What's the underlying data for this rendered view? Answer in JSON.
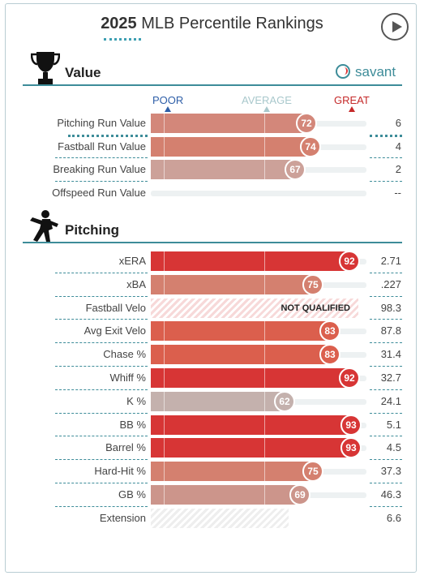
{
  "header": {
    "year": "2025",
    "title": "MLB Percentile Rankings"
  },
  "colors": {
    "accent": "#3d8c99",
    "poor": "#2f5fa8",
    "average": "#a9c8cc",
    "great": "#c52a2a"
  },
  "icons": {
    "play": "play-icon",
    "value": "trophy-icon",
    "pitching": "pitcher-icon",
    "savant": "baseball-icon"
  },
  "value_section": {
    "title": "Value",
    "brand": "savant",
    "scale": {
      "poor": "POOR",
      "average": "AVERAGE",
      "great": "GREAT"
    },
    "rows": [
      {
        "name": "Pitching Run Value",
        "percentile": 72,
        "value": "6",
        "color": "#d3877a"
      },
      {
        "name": "Fastball Run Value",
        "percentile": 74,
        "value": "4",
        "color": "#d4806f"
      },
      {
        "name": "Breaking Run Value",
        "percentile": 67,
        "value": "2",
        "color": "#cca199"
      },
      {
        "name": "Offspeed Run Value",
        "percentile": null,
        "value": "--",
        "color": "#eeeeee"
      }
    ]
  },
  "pitching_section": {
    "title": "Pitching",
    "not_qualified": "NOT QUALIFIED",
    "rows": [
      {
        "name": "xERA",
        "percentile": 92,
        "value": "2.71",
        "color": "#d73535"
      },
      {
        "name": "xBA",
        "percentile": 75,
        "value": ".227",
        "color": "#d4806f"
      },
      {
        "name": "Fastball Velo",
        "percentile": null,
        "value": "98.3",
        "color": "#f7d9d9",
        "status": "not_qualified"
      },
      {
        "name": "Avg Exit Velo",
        "percentile": 83,
        "value": "87.8",
        "color": "#db5f4d"
      },
      {
        "name": "Chase %",
        "percentile": 83,
        "value": "31.4",
        "color": "#db5f4d"
      },
      {
        "name": "Whiff %",
        "percentile": 92,
        "value": "32.7",
        "color": "#d73535"
      },
      {
        "name": "K %",
        "percentile": 62,
        "value": "24.1",
        "color": "#c4b1ad"
      },
      {
        "name": "BB %",
        "percentile": 93,
        "value": "5.1",
        "color": "#d73535"
      },
      {
        "name": "Barrel %",
        "percentile": 93,
        "value": "4.5",
        "color": "#d73535"
      },
      {
        "name": "Hard-Hit %",
        "percentile": 75,
        "value": "37.3",
        "color": "#d4806f"
      },
      {
        "name": "GB %",
        "percentile": 69,
        "value": "46.3",
        "color": "#cc958b"
      },
      {
        "name": "Extension",
        "percentile": null,
        "value": "6.6",
        "color": "#eeeeee",
        "status": "extension"
      }
    ]
  }
}
